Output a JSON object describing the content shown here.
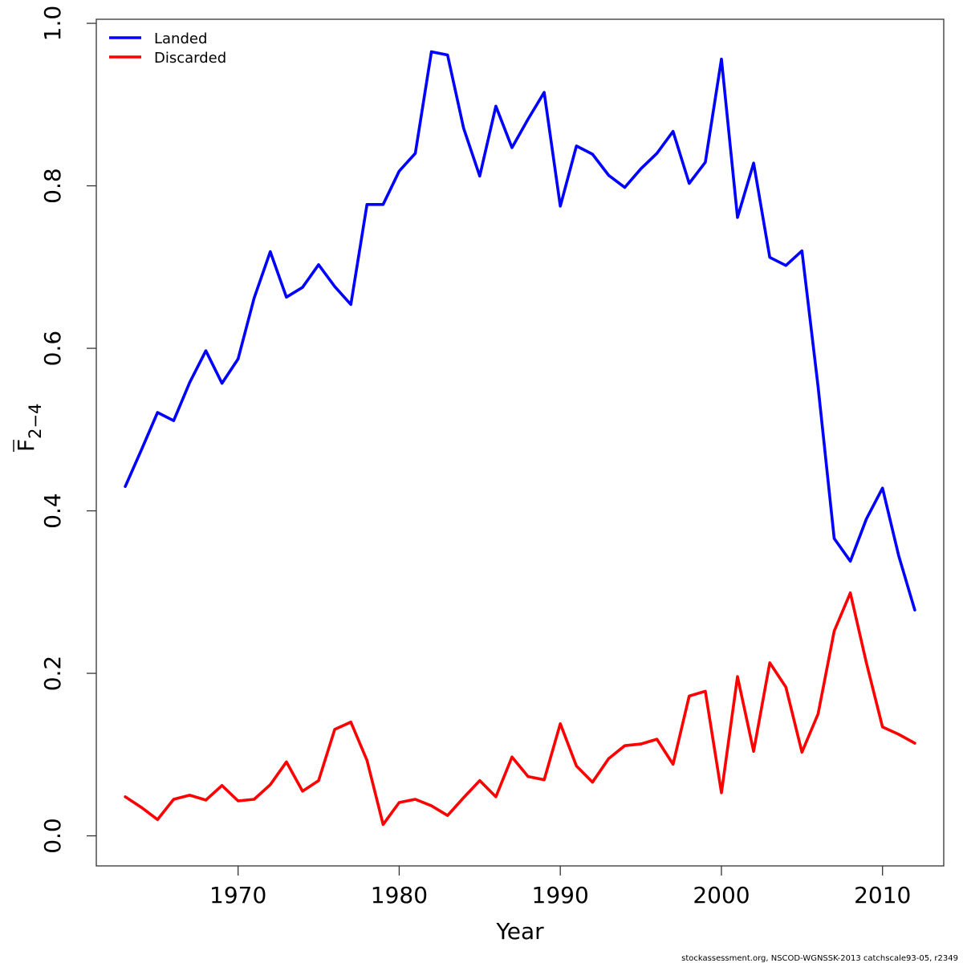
{
  "chart_data": {
    "type": "line",
    "xlabel": "Year",
    "ylabel": {
      "base": "F",
      "subscript": "2−4"
    },
    "xlim": [
      1961.2,
      2013.8
    ],
    "ylim": [
      -0.037,
      1.005
    ],
    "x_ticks": [
      1970,
      1980,
      1990,
      2000,
      2010
    ],
    "y_ticks": [
      0.0,
      0.2,
      0.4,
      0.6,
      0.8,
      1.0
    ],
    "x_tick_labels": [
      "1970",
      "1980",
      "1990",
      "2000",
      "2010"
    ],
    "y_tick_labels": [
      "0.0",
      "0.2",
      "0.4",
      "0.6",
      "0.8",
      "1.0"
    ],
    "legend_position": "top-left",
    "x": [
      1963,
      1964,
      1965,
      1966,
      1967,
      1968,
      1969,
      1970,
      1971,
      1972,
      1973,
      1974,
      1975,
      1976,
      1977,
      1978,
      1979,
      1980,
      1981,
      1982,
      1983,
      1984,
      1985,
      1986,
      1987,
      1988,
      1989,
      1990,
      1991,
      1992,
      1993,
      1994,
      1995,
      1996,
      1997,
      1998,
      1999,
      2000,
      2001,
      2002,
      2003,
      2004,
      2005,
      2006,
      2007,
      2008,
      2009,
      2010,
      2011,
      2012
    ],
    "series": [
      {
        "name": "Landed",
        "color": "#0000ff",
        "values": [
          0.43,
          0.475,
          0.521,
          0.511,
          0.558,
          0.597,
          0.557,
          0.587,
          0.662,
          0.719,
          0.663,
          0.675,
          0.703,
          0.676,
          0.654,
          0.777,
          0.777,
          0.818,
          0.84,
          0.965,
          0.961,
          0.871,
          0.812,
          0.898,
          0.847,
          0.882,
          0.915,
          0.775,
          0.849,
          0.839,
          0.813,
          0.798,
          0.821,
          0.84,
          0.867,
          0.803,
          0.829,
          0.956,
          0.761,
          0.828,
          0.712,
          0.702,
          0.72,
          0.553,
          0.366,
          0.338,
          0.39,
          0.428,
          0.345,
          0.278
        ]
      },
      {
        "name": "Discarded",
        "color": "#ff0000",
        "values": [
          0.048,
          0.035,
          0.02,
          0.045,
          0.05,
          0.044,
          0.062,
          0.043,
          0.045,
          0.063,
          0.091,
          0.055,
          0.068,
          0.131,
          0.14,
          0.093,
          0.014,
          0.041,
          0.045,
          0.037,
          0.025,
          0.047,
          0.068,
          0.048,
          0.097,
          0.073,
          0.069,
          0.138,
          0.086,
          0.066,
          0.095,
          0.111,
          0.113,
          0.119,
          0.088,
          0.172,
          0.178,
          0.053,
          0.196,
          0.104,
          0.213,
          0.183,
          0.103,
          0.15,
          0.252,
          0.299,
          0.213,
          0.134,
          0.125,
          0.114
        ]
      }
    ]
  },
  "footer": "stockassessment.org, NSCOD-WGNSSK-2013  catchscale93-05, r2349"
}
